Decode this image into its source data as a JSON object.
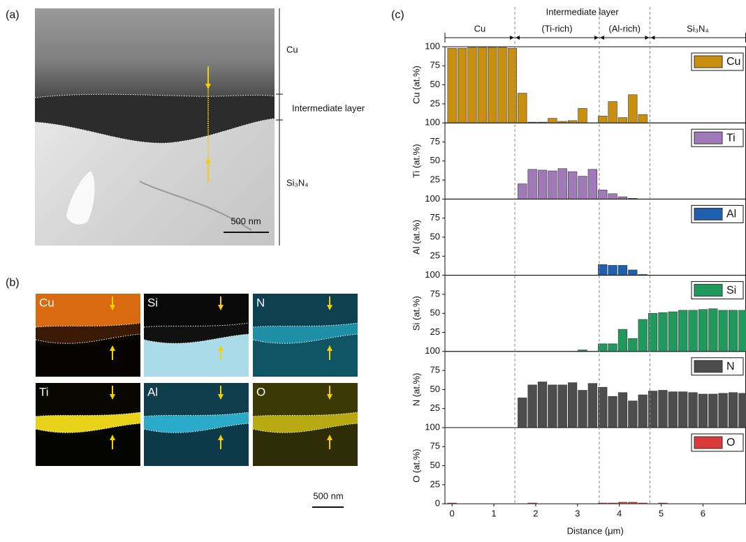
{
  "panel_a": {
    "label": "(a)",
    "layers": [
      "Cu",
      "Intermediate layer",
      "Si₃N₄"
    ],
    "scale_bar": "500 nm"
  },
  "panel_b": {
    "label": "(b)",
    "maps": [
      "Cu",
      "Si",
      "N",
      "Ti",
      "Al",
      "O"
    ],
    "scale_bar": "500 nm"
  },
  "panel_c": {
    "label": "(c)",
    "zone_group": "Intermediate layer",
    "zones": [
      "Cu",
      "(Ti-rich)",
      "(Al-rich)",
      "Si₃N₄"
    ],
    "boundaries": [
      1.5,
      3.52,
      4.73
    ]
  },
  "chart_data": [
    {
      "type": "bar",
      "ylabel": "Cu (at.%)",
      "ylim": [
        0,
        100
      ],
      "yticks": [
        25,
        50,
        75,
        100
      ],
      "series": [
        {
          "name": "Cu",
          "color": "#c8900e",
          "values": [
            98,
            98,
            99,
            99,
            99,
            99,
            98,
            39,
            1,
            1,
            6,
            2,
            3,
            19,
            0,
            9,
            28,
            7,
            37,
            11,
            0,
            0,
            0,
            0,
            0,
            0,
            0,
            0,
            0,
            0
          ]
        }
      ]
    },
    {
      "type": "bar",
      "ylabel": "Ti (at.%)",
      "ylim": [
        0,
        100
      ],
      "yticks": [
        25,
        50,
        75,
        100
      ],
      "series": [
        {
          "name": "Ti",
          "color": "#a07ab8",
          "values": [
            0,
            0,
            0,
            0,
            0,
            0,
            0,
            20,
            39,
            38,
            37,
            40,
            36,
            30,
            39,
            12,
            7,
            3,
            1,
            0,
            0,
            0,
            0,
            0,
            0,
            0,
            0,
            0,
            0,
            0
          ]
        }
      ]
    },
    {
      "type": "bar",
      "ylabel": "Al (at.%)",
      "ylim": [
        0,
        100
      ],
      "yticks": [
        25,
        50,
        75,
        100
      ],
      "series": [
        {
          "name": "Al",
          "color": "#1f5fb0",
          "values": [
            0,
            0,
            0,
            0,
            0,
            0,
            0,
            0,
            0,
            0,
            0,
            0,
            0,
            0,
            0,
            14,
            13,
            13,
            7,
            1,
            0,
            0,
            0,
            0,
            0,
            0,
            0,
            0,
            0,
            0
          ]
        }
      ]
    },
    {
      "type": "bar",
      "ylabel": "Si (at.%)",
      "ylim": [
        0,
        100
      ],
      "yticks": [
        25,
        50,
        75,
        100
      ],
      "series": [
        {
          "name": "Si",
          "color": "#1f9a5c",
          "values": [
            0,
            0,
            0,
            0,
            0,
            0,
            0,
            0,
            0,
            0,
            0,
            0,
            0,
            2,
            0,
            10,
            10,
            29,
            17,
            42,
            50,
            51,
            52,
            54,
            54,
            55,
            56,
            54,
            54,
            54
          ]
        }
      ]
    },
    {
      "type": "bar",
      "ylabel": "N (at.%)",
      "ylim": [
        0,
        100
      ],
      "yticks": [
        25,
        50,
        75,
        100
      ],
      "series": [
        {
          "name": "N",
          "color": "#4d4d4d",
          "values": [
            0,
            0,
            0,
            0,
            0,
            0,
            0,
            39,
            56,
            60,
            56,
            56,
            59,
            49,
            58,
            53,
            41,
            46,
            35,
            43,
            48,
            49,
            47,
            47,
            46,
            44,
            44,
            45,
            46,
            45
          ]
        }
      ]
    },
    {
      "type": "bar",
      "ylabel": "O (at.%)",
      "ylim": [
        0,
        100
      ],
      "yticks": [
        0,
        25,
        50,
        75,
        100
      ],
      "xlabel": "Distance (μm)",
      "xlim": [
        -0.17,
        7.02
      ],
      "xticks": [
        0,
        1,
        2,
        3,
        4,
        5,
        6
      ],
      "x": [
        0,
        0.24,
        0.48,
        0.72,
        0.96,
        1.2,
        1.44,
        1.68,
        1.92,
        2.16,
        2.4,
        2.64,
        2.88,
        3.12,
        3.36,
        3.6,
        3.84,
        4.08,
        4.32,
        4.56,
        4.8,
        5.04,
        5.28,
        5.52,
        5.76,
        6.0,
        6.24,
        6.48,
        6.72,
        6.96
      ],
      "series": [
        {
          "name": "O",
          "color": "#d83a3a",
          "values": [
            1,
            0,
            0,
            0,
            0,
            0,
            0,
            0,
            1,
            0,
            0,
            0,
            0,
            0,
            0,
            1,
            1,
            2,
            2,
            1,
            0,
            1,
            0,
            0,
            0,
            0,
            0,
            0,
            0,
            0
          ]
        }
      ]
    }
  ]
}
